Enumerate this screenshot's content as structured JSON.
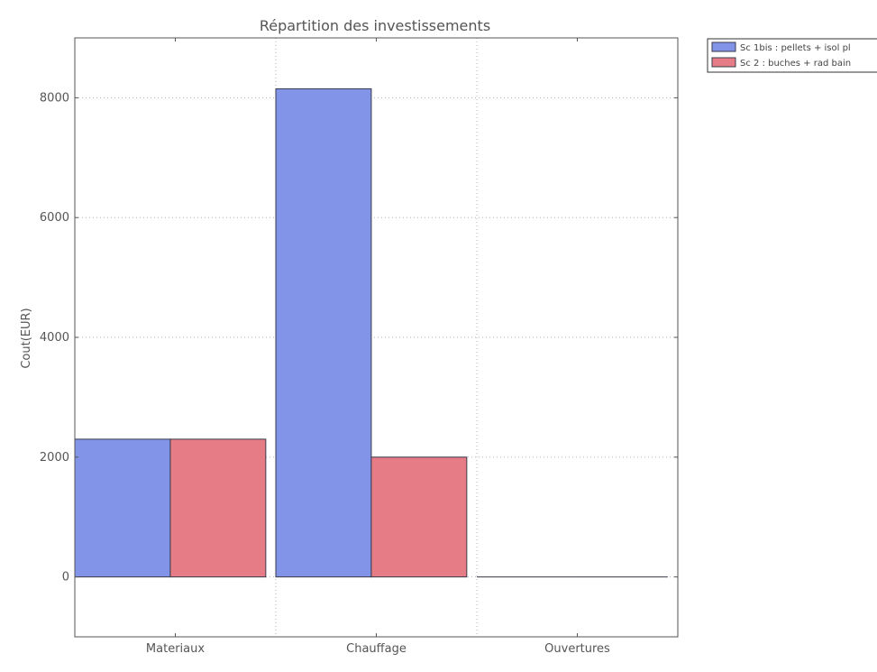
{
  "chart_data": {
    "type": "bar",
    "title": "Répartition des investissements",
    "xlabel": "",
    "ylabel": "Cout(EUR)",
    "categories": [
      "Materiaux",
      "Chauffage",
      "Ouvertures"
    ],
    "series": [
      {
        "name": "Sc 1bis : pellets + isol pl",
        "values": [
          2300,
          8150,
          0
        ],
        "color": "#8194e8"
      },
      {
        "name": "Sc 2 : buches + rad bain",
        "values": [
          2300,
          2000,
          0
        ],
        "color": "#e67d86"
      }
    ],
    "ylim": [
      -1000,
      9000
    ],
    "yticks": [
      0,
      2000,
      4000,
      6000,
      8000
    ],
    "ytick_labels": [
      "0",
      "2000",
      "4000",
      "6000",
      "8000"
    ],
    "grid": true,
    "legend_position": "upper-right-outside"
  }
}
